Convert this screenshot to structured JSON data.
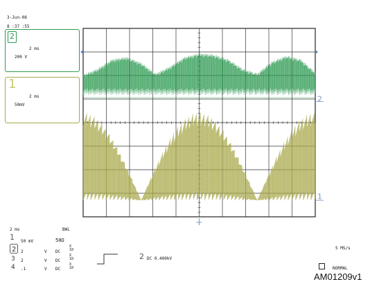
{
  "header": {
    "date": "3-Jun-08",
    "time": "8 :37 :55"
  },
  "channels": [
    {
      "id": "2",
      "timebase": "2 ms",
      "volts_per_div": "200 V",
      "color": "#2e9a52"
    },
    {
      "id": "1",
      "timebase": "2 ms",
      "volts_per_div": "50mV",
      "color": "#a8a84a"
    }
  ],
  "bottom": {
    "timebase": "2 ms",
    "bwl": "BWL",
    "ch1_label": "1",
    "ch1_scale": "50 mV",
    "ohm": "50Ω",
    "rows": [
      {
        "col1": "2",
        "col2": "V",
        "col3": "DC",
        "mult": "X 10"
      },
      {
        "col1": "2",
        "col2": "V",
        "col3": "DC",
        "mult": "X 10"
      },
      {
        "col1": ".1",
        "col2": "V",
        "col3": "DC",
        "mult": "X 10"
      }
    ],
    "trigger_channel": "2",
    "trigger_level": "DC 0.400kV",
    "sample_rate": "5 MS/s",
    "mode": "NORMAL",
    "figure_id": "AM01209v1"
  },
  "chart_data": {
    "type": "line",
    "title": "",
    "grid": true,
    "grid_divisions": {
      "x": 10,
      "y": 8
    },
    "series": [
      {
        "name": "2",
        "color": "#2e9a52",
        "description": "ripple envelope, high-frequency",
        "envelope_top_divs": [
          -0.95,
          -0.7,
          -0.3,
          -0.2,
          -0.45,
          -0.9,
          -0.6,
          -0.2,
          -0.05,
          -0.1,
          -0.3,
          -0.7,
          -0.9,
          -0.4,
          -0.15,
          -0.3,
          -0.85
        ],
        "baseline_divs": 0.2
      },
      {
        "name": "1",
        "color": "#a8a84a",
        "description": "rectified sine envelope",
        "envelope_peaks_divs": [
          3.75,
          0.0,
          3.75,
          0.0,
          3.75
        ]
      }
    ],
    "markers": {
      "ch2_level_label": "2",
      "ch1_level_label": "1"
    }
  }
}
